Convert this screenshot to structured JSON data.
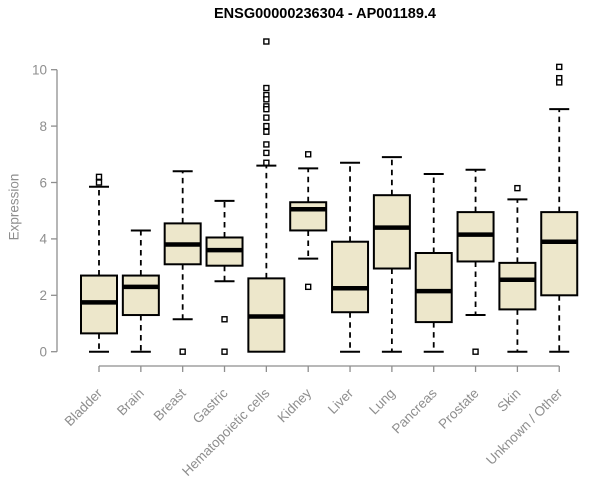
{
  "chart_data": {
    "type": "boxplot",
    "title": "ENSG00000236304 - AP001189.4",
    "ylabel": "Expression",
    "xlabel": "",
    "ylim": [
      0,
      11
    ],
    "yticks": [
      0,
      2,
      4,
      6,
      8,
      10
    ],
    "grid": false,
    "legend": "none",
    "colors": {
      "box_fill": "#EDE7CB",
      "box_border": "#000000",
      "median": "#000000",
      "whisker": "#000000",
      "axis": "#8E8E8E",
      "axis_text": "#8E8E8E",
      "title": "#000000",
      "background": "#FFFFFF"
    },
    "categories": [
      "Bladder",
      "Brain",
      "Breast",
      "Gastric",
      "Hematopoietic cells",
      "Kidney",
      "Liver",
      "Lung",
      "Pancreas",
      "Prostate",
      "Skin",
      "Unknown / Other"
    ],
    "boxes": [
      {
        "label": "Bladder",
        "whisker_low": 0,
        "q1": 0.65,
        "median": 1.75,
        "q3": 2.7,
        "whisker_high": 5.85,
        "outliers": [
          6.2,
          6.0
        ]
      },
      {
        "label": "Brain",
        "whisker_low": 0,
        "q1": 1.3,
        "median": 2.3,
        "q3": 2.7,
        "whisker_high": 4.3,
        "outliers": []
      },
      {
        "label": "Breast",
        "whisker_low": 1.15,
        "q1": 3.1,
        "median": 3.8,
        "q3": 4.55,
        "whisker_high": 6.4,
        "outliers": [
          0
        ]
      },
      {
        "label": "Gastric",
        "whisker_low": 2.5,
        "q1": 3.05,
        "median": 3.6,
        "q3": 4.05,
        "whisker_high": 5.35,
        "outliers": [
          1.15,
          0
        ]
      },
      {
        "label": "Hematopoietic cells",
        "whisker_low": 0,
        "q1": 0,
        "median": 1.25,
        "q3": 2.6,
        "whisker_high": 6.6,
        "outliers": [
          11.0,
          9.35,
          9.1,
          8.95,
          8.7,
          8.6,
          8.3,
          8.0,
          7.8,
          7.35,
          7.05,
          6.7
        ]
      },
      {
        "label": "Kidney",
        "whisker_low": 3.3,
        "q1": 4.3,
        "median": 5.05,
        "q3": 5.3,
        "whisker_high": 6.5,
        "outliers": [
          7.0,
          2.3
        ]
      },
      {
        "label": "Liver",
        "whisker_low": 0,
        "q1": 1.4,
        "median": 2.25,
        "q3": 3.9,
        "whisker_high": 6.7,
        "outliers": []
      },
      {
        "label": "Lung",
        "whisker_low": 0,
        "q1": 2.95,
        "median": 4.4,
        "q3": 5.55,
        "whisker_high": 6.9,
        "outliers": []
      },
      {
        "label": "Pancreas",
        "whisker_low": 0,
        "q1": 1.05,
        "median": 2.15,
        "q3": 3.5,
        "whisker_high": 6.3,
        "outliers": []
      },
      {
        "label": "Prostate",
        "whisker_low": 1.3,
        "q1": 3.2,
        "median": 4.15,
        "q3": 4.95,
        "whisker_high": 6.45,
        "outliers": [
          0
        ]
      },
      {
        "label": "Skin",
        "whisker_low": 0,
        "q1": 1.5,
        "median": 2.55,
        "q3": 3.15,
        "whisker_high": 5.4,
        "outliers": [
          5.8
        ]
      },
      {
        "label": "Unknown / Other",
        "whisker_low": 0,
        "q1": 2.0,
        "median": 3.9,
        "q3": 4.95,
        "whisker_high": 8.6,
        "outliers": [
          10.1,
          9.7,
          9.55
        ]
      }
    ]
  }
}
